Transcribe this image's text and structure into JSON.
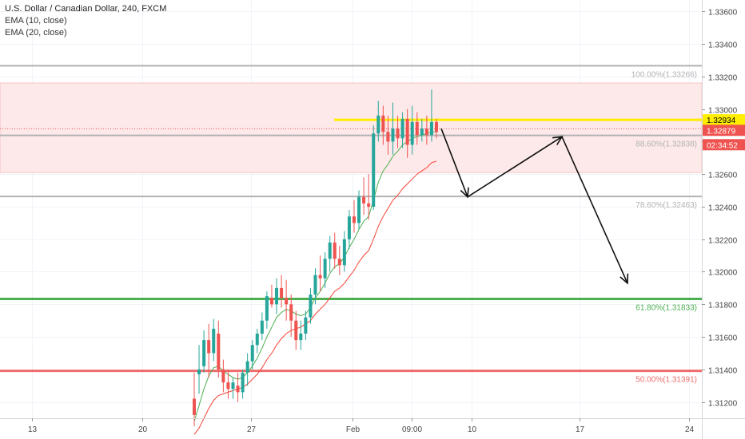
{
  "header": {
    "symbol": "U.S. Dollar / Canadian Dollar, 240, FXCM",
    "indicators": [
      "EMA (10, close)",
      "EMA (20, close)"
    ]
  },
  "colors": {
    "up": "#26a69a",
    "down": "#ef5350",
    "ema10": "#4caf50",
    "ema20": "#f44336",
    "fib_gray": "#b2b2b2",
    "fib_green": "#4caf50",
    "fib_red": "#ef6c6c",
    "zone_fill": "#fde9e9",
    "zone_border": "#f7c4c4",
    "resistance": "#ffee00",
    "arrow": "#111111"
  },
  "chart_data": {
    "type": "candlestick",
    "x_ticks": [
      "13",
      "20",
      "27",
      "Feb",
      "09:00",
      "10",
      "17",
      "24"
    ],
    "y_ticks": [
      "1.33600",
      "1.33400",
      "1.33200",
      "1.33000",
      "1.32800",
      "1.32600",
      "1.32400",
      "1.32200",
      "1.32000",
      "1.31800",
      "1.31600",
      "1.31400",
      "1.31200"
    ],
    "ylim": [
      1.311,
      1.3367
    ],
    "price_label": "1.32934",
    "current_price_label": "1.32879",
    "countdown_label": "02:34:52",
    "current_price": 1.32879,
    "resistance_price": 1.32934,
    "zone": [
      1.3261,
      1.3316
    ],
    "fib_levels": [
      {
        "label": "100.00%(1.33266)",
        "price": 1.33266,
        "color": "gray"
      },
      {
        "label": "88.60%(1.32838)",
        "price": 1.32838,
        "color": "gray"
      },
      {
        "label": "78.60%(1.32463)",
        "price": 1.32463,
        "color": "gray"
      },
      {
        "label": "61.80%(1.31833)",
        "price": 1.31833,
        "color": "green"
      },
      {
        "label": "50.00%(1.31391)",
        "price": 1.31391,
        "color": "red"
      }
    ],
    "candles": [
      [
        1.3122,
        1.3138,
        1.3112,
        1.3105
      ],
      [
        1.3137,
        1.3155,
        1.314,
        1.3125
      ],
      [
        1.3142,
        1.3164,
        1.3158,
        1.3138
      ],
      [
        1.3158,
        1.3168,
        1.315,
        1.3135
      ],
      [
        1.315,
        1.3171,
        1.3165,
        1.3145
      ],
      [
        1.3162,
        1.317,
        1.314,
        1.3135
      ],
      [
        1.314,
        1.3146,
        1.3132,
        1.3126
      ],
      [
        1.3132,
        1.314,
        1.3128,
        1.3122
      ],
      [
        1.3128,
        1.3135,
        1.3132,
        1.3122
      ],
      [
        1.313,
        1.3138,
        1.3126,
        1.312
      ],
      [
        1.3126,
        1.314,
        1.3138,
        1.3122
      ],
      [
        1.3138,
        1.315,
        1.3145,
        1.313
      ],
      [
        1.3145,
        1.3158,
        1.3155,
        1.314
      ],
      [
        1.3155,
        1.3165,
        1.3162,
        1.315
      ],
      [
        1.3162,
        1.3175,
        1.317,
        1.3158
      ],
      [
        1.317,
        1.3188,
        1.3185,
        1.3165
      ],
      [
        1.3184,
        1.3192,
        1.318,
        1.3178
      ],
      [
        1.318,
        1.3196,
        1.319,
        1.3174
      ],
      [
        1.319,
        1.3198,
        1.3184,
        1.3178
      ],
      [
        1.3184,
        1.3195,
        1.318,
        1.317
      ],
      [
        1.318,
        1.3186,
        1.317,
        1.316
      ],
      [
        1.317,
        1.3176,
        1.3158,
        1.3152
      ],
      [
        1.3158,
        1.317,
        1.3162,
        1.3152
      ],
      [
        1.3162,
        1.3176,
        1.3172,
        1.3158
      ],
      [
        1.3172,
        1.319,
        1.3186,
        1.3168
      ],
      [
        1.3186,
        1.3202,
        1.3198,
        1.318
      ],
      [
        1.3198,
        1.321,
        1.3196,
        1.3188
      ],
      [
        1.3196,
        1.3212,
        1.3208,
        1.319
      ],
      [
        1.3208,
        1.3222,
        1.3218,
        1.32
      ],
      [
        1.3218,
        1.3224,
        1.3208,
        1.3202
      ],
      [
        1.3208,
        1.3216,
        1.3204,
        1.3198
      ],
      [
        1.3204,
        1.3225,
        1.322,
        1.32
      ],
      [
        1.322,
        1.3238,
        1.3234,
        1.3214
      ],
      [
        1.3234,
        1.3244,
        1.323,
        1.3224
      ],
      [
        1.323,
        1.325,
        1.3246,
        1.3226
      ],
      [
        1.3246,
        1.3258,
        1.3242,
        1.3235
      ],
      [
        1.3242,
        1.326,
        1.324,
        1.3232
      ],
      [
        1.324,
        1.329,
        1.3285,
        1.3238
      ],
      [
        1.3285,
        1.3305,
        1.3296,
        1.328
      ],
      [
        1.3296,
        1.3302,
        1.3286,
        1.3278
      ],
      [
        1.3286,
        1.3296,
        1.328,
        1.3272
      ],
      [
        1.328,
        1.3304,
        1.3288,
        1.3272
      ],
      [
        1.3288,
        1.3296,
        1.3282,
        1.3276
      ],
      [
        1.3282,
        1.3298,
        1.3294,
        1.3276
      ],
      [
        1.3294,
        1.33,
        1.3278,
        1.327
      ],
      [
        1.3278,
        1.3302,
        1.3292,
        1.3272
      ],
      [
        1.3292,
        1.3298,
        1.3284,
        1.3278
      ],
      [
        1.3284,
        1.3294,
        1.3288,
        1.328
      ],
      [
        1.3288,
        1.3296,
        1.3284,
        1.3278
      ],
      [
        1.3284,
        1.3312,
        1.3292,
        1.328
      ],
      [
        1.3292,
        1.3294,
        1.3286,
        1.3282
      ]
    ],
    "ema10": [
      1.3108,
      1.3118,
      1.3128,
      1.3136,
      1.3141,
      1.3142,
      1.3139,
      1.3137,
      1.3135,
      1.3134,
      1.3135,
      1.3138,
      1.3142,
      1.3147,
      1.3153,
      1.316,
      1.3166,
      1.3172,
      1.3175,
      1.3177,
      1.3176,
      1.3174,
      1.3173,
      1.3174,
      1.3178,
      1.3184,
      1.3188,
      1.3193,
      1.3199,
      1.3203,
      1.3205,
      1.3209,
      1.3215,
      1.322,
      1.3226,
      1.3231,
      1.3234,
      1.3244,
      1.3255,
      1.3262,
      1.3266,
      1.3271,
      1.3274,
      1.3278,
      1.328,
      1.3282,
      1.3283,
      1.3284,
      1.3285,
      1.3286,
      1.3286
    ],
    "ema20": [
      1.31,
      1.3104,
      1.311,
      1.3116,
      1.3121,
      1.3124,
      1.3125,
      1.3126,
      1.3127,
      1.3128,
      1.3129,
      1.3131,
      1.3134,
      1.3137,
      1.3141,
      1.3146,
      1.315,
      1.3155,
      1.3159,
      1.3162,
      1.3164,
      1.3165,
      1.3166,
      1.3168,
      1.317,
      1.3174,
      1.3177,
      1.318,
      1.3184,
      1.3188,
      1.319,
      1.3193,
      1.3197,
      1.3201,
      1.3206,
      1.321,
      1.3213,
      1.322,
      1.3228,
      1.3234,
      1.3239,
      1.3244,
      1.3247,
      1.3251,
      1.3254,
      1.3257,
      1.326,
      1.3262,
      1.3264,
      1.3267,
      1.3268
    ],
    "projection": [
      {
        "date_pos": 0,
        "price": 1.3288
      },
      {
        "date_pos": 1,
        "price": 1.3246
      },
      {
        "date_pos": 2,
        "price": 1.3283
      },
      {
        "date_pos": 3,
        "price": 1.3193
      }
    ]
  }
}
